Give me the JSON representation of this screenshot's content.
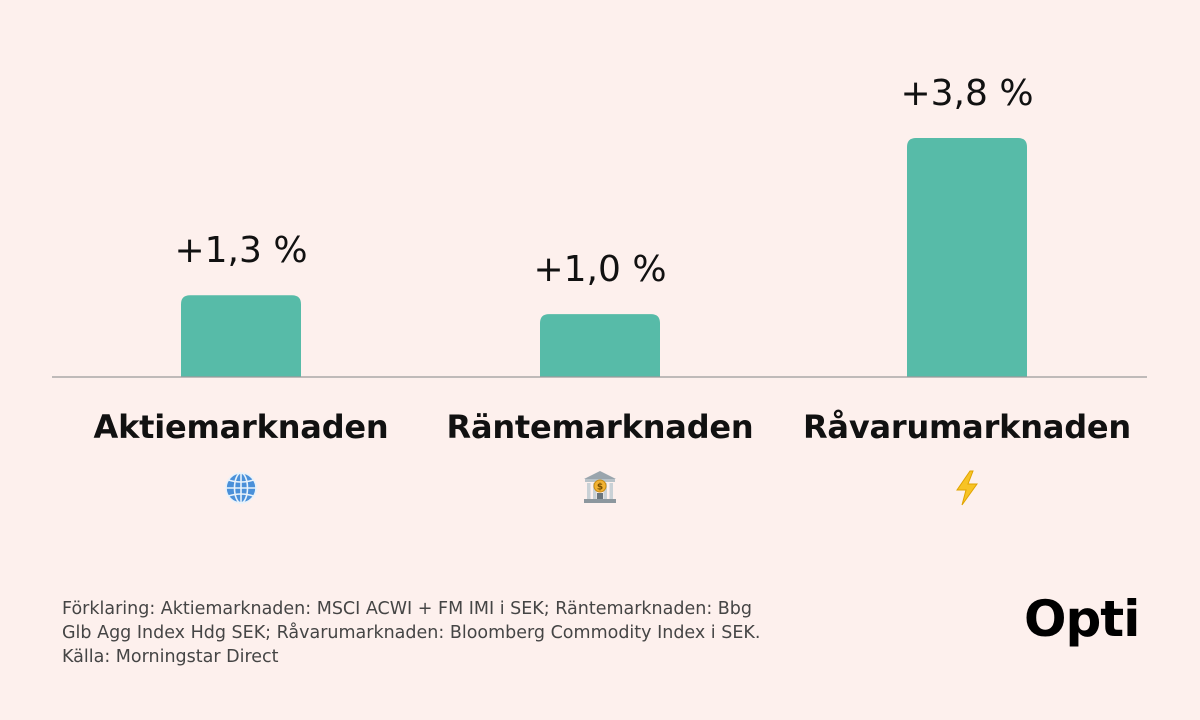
{
  "chart_data": {
    "type": "bar",
    "categories": [
      "Aktiemarknaden",
      "Räntemarknaden",
      "Råvarumarknaden"
    ],
    "values": [
      1.3,
      1.0,
      3.8
    ],
    "data_labels": [
      "+1,3 %",
      "+1,0 %",
      "+3,8 %"
    ],
    "icons": [
      "globe-icon",
      "bank-icon",
      "lightning-icon"
    ],
    "ylim": [
      0,
      3.8
    ],
    "grid": false,
    "bar_color": "#57bba8",
    "title": "",
    "xlabel": "",
    "ylabel": ""
  },
  "footnote": {
    "line1": "Förklaring: Aktiemarknaden: MSCI ACWI + FM IMI i SEK; Räntemarknaden: Bbg",
    "line2": "Glb Agg Index Hdg SEK; Råvarumarknaden: Bloomberg Commodity Index i SEK.",
    "line3": "Källa: Morningstar Direct"
  },
  "brand": {
    "logo": "Opti"
  },
  "colors": {
    "background": "#fdf0ed",
    "bar": "#57bba8",
    "baseline": "#9a9a9a",
    "text": "#111111"
  }
}
